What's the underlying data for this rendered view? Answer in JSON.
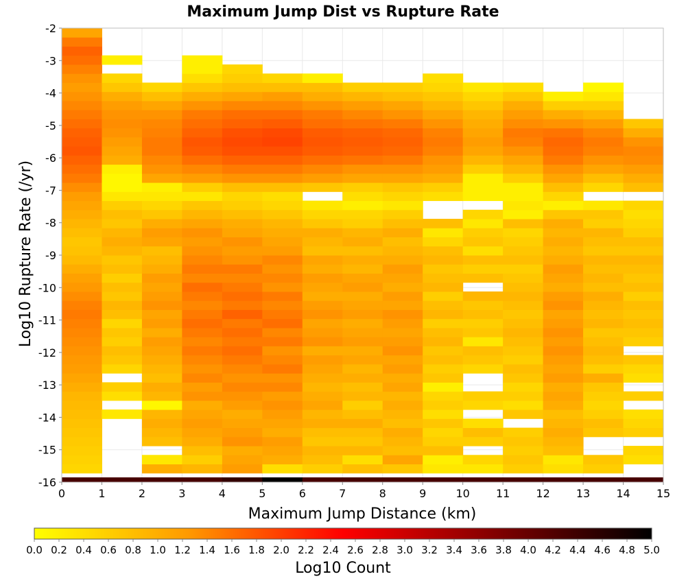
{
  "chart_data": {
    "type": "heatmap",
    "title": "Maximum Jump Dist vs Rupture Rate",
    "xlabel": "Maximum Jump Distance (km)",
    "ylabel": "Log10 Rupture Rate (/yr)",
    "xlim": [
      0,
      15
    ],
    "ylim": [
      -16,
      -2
    ],
    "x_ticks": [
      "0",
      "1",
      "2",
      "3",
      "4",
      "5",
      "6",
      "7",
      "8",
      "9",
      "10",
      "11",
      "12",
      "13",
      "14",
      "15"
    ],
    "y_ticks": [
      "-2",
      "-3",
      "-4",
      "-5",
      "-6",
      "-7",
      "-8",
      "-9",
      "-10",
      "-11",
      "-12",
      "-13",
      "-14",
      "-15",
      "-16"
    ],
    "x_bin_width": 1,
    "y_bin_width": 0.28,
    "y_bin_start": -16,
    "colorbar": {
      "label": "Log10 Count",
      "range": [
        0,
        5
      ],
      "ticks": [
        "0.0",
        "0.2",
        "0.4",
        "0.6",
        "0.8",
        "1.0",
        "1.2",
        "1.4",
        "1.6",
        "1.8",
        "2.0",
        "2.2",
        "2.4",
        "2.6",
        "2.8",
        "3.0",
        "3.2",
        "3.4",
        "3.6",
        "3.8",
        "4.0",
        "4.2",
        "4.4",
        "4.6",
        "4.8",
        "5.0"
      ],
      "colors": [
        "#ffff00",
        "#ff9900",
        "#ff0000",
        "#800000",
        "#000000"
      ]
    },
    "columns": [
      {
        "x": "0-1",
        "log10_count_from_y_-16": [
          4.3,
          0.5,
          0.55,
          0.6,
          0.65,
          0.7,
          0.75,
          0.8,
          0.85,
          0.9,
          1.0,
          1.1,
          1.2,
          1.25,
          1.3,
          1.35,
          1.4,
          1.45,
          1.5,
          1.45,
          1.35,
          1.25,
          1.15,
          1.0,
          0.85,
          0.75,
          0.7,
          0.8,
          0.9,
          1.0,
          1.1,
          1.2,
          1.35,
          1.5,
          1.6,
          1.7,
          1.8,
          1.75,
          1.7,
          1.6,
          1.5,
          1.4,
          1.3,
          1.2,
          1.3,
          1.45,
          1.6,
          1.7,
          1.5,
          1.1,
          0.5
        ]
      },
      {
        "x": "1-2",
        "log10_count_from_y_-16": [
          4.3,
          null,
          null,
          null,
          null,
          null,
          null,
          0.3,
          null,
          0.4,
          0.6,
          null,
          0.5,
          0.7,
          0.8,
          0.6,
          0.7,
          0.5,
          0.8,
          0.9,
          0.7,
          0.8,
          0.6,
          0.8,
          0.7,
          0.9,
          1.0,
          0.9,
          0.7,
          0.8,
          0.6,
          0.3,
          0.1,
          0.1,
          0.2,
          1.0,
          1.1,
          1.2,
          1.3,
          1.35,
          1.3,
          1.2,
          1.0,
          0.7,
          0.5,
          null,
          0.2,
          null,
          null,
          null,
          null
        ]
      },
      {
        "x": "2-3",
        "log10_count_from_y_-16": [
          4.3,
          1.0,
          0.3,
          null,
          0.8,
          0.9,
          1.0,
          0.9,
          0.1,
          0.9,
          1.0,
          0.8,
          0.9,
          1.0,
          1.1,
          1.2,
          1.0,
          1.2,
          1.1,
          1.3,
          1.2,
          1.1,
          1.2,
          1.0,
          0.9,
          0.8,
          1.1,
          1.2,
          1.0,
          0.7,
          0.5,
          0.3,
          0.2,
          1.1,
          1.3,
          1.4,
          1.5,
          1.5,
          1.45,
          1.4,
          1.3,
          1.1,
          0.8,
          0.5,
          null,
          null,
          null,
          null,
          null,
          null,
          null
        ]
      },
      {
        "x": "3-4",
        "log10_count_from_y_-16": [
          4.3,
          0.9,
          0.6,
          0.8,
          1.0,
          1.1,
          1.2,
          1.1,
          1.0,
          1.3,
          1.2,
          1.4,
          1.3,
          1.4,
          1.5,
          1.4,
          1.5,
          1.6,
          1.5,
          1.4,
          1.5,
          1.6,
          1.4,
          1.5,
          1.4,
          1.3,
          1.2,
          1.3,
          1.1,
          0.9,
          0.7,
          0.3,
          0.6,
          1.2,
          1.4,
          1.6,
          1.75,
          1.8,
          1.7,
          1.6,
          1.5,
          1.3,
          1.0,
          0.7,
          0.4,
          0.2,
          0.2,
          null,
          null,
          null,
          null
        ]
      },
      {
        "x": "4-5",
        "log10_count_from_y_-16": [
          4.5,
          1.2,
          1.1,
          1.0,
          1.3,
          1.2,
          1.1,
          1.0,
          1.2,
          1.3,
          1.4,
          1.3,
          1.4,
          1.5,
          1.6,
          1.5,
          1.6,
          1.5,
          1.7,
          1.5,
          1.6,
          1.5,
          1.4,
          1.5,
          1.3,
          1.2,
          1.3,
          1.1,
          1.0,
          0.8,
          0.6,
          0.5,
          0.8,
          1.3,
          1.5,
          1.7,
          1.85,
          1.9,
          1.85,
          1.7,
          1.6,
          1.4,
          1.1,
          0.8,
          0.6,
          0.5,
          null,
          null,
          null,
          null,
          null
        ]
      },
      {
        "x": "5-6",
        "log10_count_from_y_-16": [
          5.0,
          0.4,
          1.0,
          1.1,
          1.2,
          1.0,
          1.1,
          1.2,
          1.3,
          1.2,
          1.4,
          1.3,
          1.5,
          1.4,
          1.3,
          1.5,
          1.4,
          1.6,
          1.5,
          1.4,
          1.5,
          1.3,
          1.4,
          1.3,
          1.4,
          1.2,
          1.1,
          1.0,
          0.9,
          0.7,
          0.5,
          0.4,
          0.8,
          1.3,
          1.5,
          1.7,
          1.85,
          1.95,
          1.9,
          1.75,
          1.6,
          1.4,
          1.2,
          0.8,
          0.5,
          null,
          null,
          null,
          null,
          null,
          null
        ]
      },
      {
        "x": "6-7",
        "log10_count_from_y_-16": [
          4.3,
          0.6,
          0.8,
          0.9,
          0.7,
          0.8,
          1.0,
          0.9,
          1.1,
          1.0,
          0.9,
          1.0,
          1.1,
          1.2,
          1.0,
          1.3,
          1.2,
          1.1,
          1.3,
          1.2,
          1.0,
          1.1,
          1.2,
          1.0,
          1.1,
          0.8,
          0.9,
          1.0,
          0.7,
          0.5,
          0.3,
          null,
          0.7,
          1.2,
          1.4,
          1.6,
          1.75,
          1.8,
          1.75,
          1.6,
          1.5,
          1.3,
          1.0,
          0.8,
          0.2,
          null,
          null,
          null,
          null,
          null,
          null
        ]
      },
      {
        "x": "7-8",
        "log10_count_from_y_-16": [
          4.3,
          0.8,
          0.4,
          0.9,
          0.7,
          0.8,
          1.0,
          0.8,
          0.6,
          0.9,
          0.8,
          1.0,
          0.9,
          1.1,
          1.0,
          1.2,
          1.1,
          1.0,
          1.2,
          1.1,
          1.0,
          1.2,
          1.1,
          0.9,
          1.0,
          0.8,
          1.0,
          0.9,
          0.6,
          0.5,
          0.2,
          0.4,
          0.6,
          1.1,
          1.3,
          1.55,
          1.7,
          1.75,
          1.7,
          1.55,
          1.4,
          1.2,
          0.9,
          0.6,
          null,
          null,
          null,
          null,
          null,
          null,
          null
        ]
      },
      {
        "x": "8-9",
        "log10_count_from_y_-16": [
          4.3,
          0.7,
          1.1,
          0.8,
          0.9,
          1.0,
          0.8,
          0.9,
          1.0,
          0.9,
          1.1,
          1.0,
          1.2,
          1.1,
          1.3,
          1.2,
          1.1,
          1.2,
          1.3,
          1.1,
          1.2,
          1.0,
          1.1,
          1.2,
          1.0,
          0.9,
          0.8,
          1.0,
          0.8,
          0.6,
          0.3,
          0.5,
          0.7,
          1.1,
          1.3,
          1.5,
          1.65,
          1.7,
          1.65,
          1.5,
          1.3,
          1.1,
          0.8,
          0.6,
          null,
          null,
          null,
          null,
          null,
          null,
          null
        ]
      },
      {
        "x": "9-10",
        "log10_count_from_y_-16": [
          4.3,
          0.3,
          0.2,
          0.8,
          0.6,
          0.5,
          0.7,
          0.4,
          0.6,
          0.5,
          0.2,
          0.7,
          0.6,
          0.8,
          0.7,
          0.9,
          0.8,
          0.6,
          0.9,
          0.8,
          0.6,
          0.9,
          0.8,
          0.7,
          0.9,
          0.8,
          0.5,
          0.3,
          0.8,
          null,
          null,
          0.4,
          0.6,
          1.0,
          1.2,
          1.3,
          1.45,
          1.5,
          1.45,
          1.3,
          1.1,
          0.9,
          0.7,
          0.5,
          0.4,
          null,
          null,
          null,
          null,
          null,
          null
        ]
      },
      {
        "x": "10-11",
        "log10_count_from_y_-16": [
          4.3,
          0.3,
          0.5,
          null,
          0.6,
          0.8,
          0.4,
          null,
          0.5,
          0.6,
          null,
          null,
          0.5,
          0.7,
          0.8,
          0.3,
          0.7,
          0.6,
          0.8,
          0.7,
          0.9,
          null,
          0.8,
          0.6,
          0.8,
          0.4,
          0.7,
          0.6,
          0.3,
          0.5,
          null,
          0.2,
          0.2,
          0.2,
          0.6,
          0.9,
          1.1,
          1.2,
          1.1,
          1.0,
          0.9,
          0.7,
          0.5,
          0.3,
          null,
          null,
          null,
          null,
          null,
          null,
          null
        ]
      },
      {
        "x": "11-12",
        "log10_count_from_y_-16": [
          4.3,
          0.6,
          0.7,
          0.6,
          0.7,
          0.6,
          null,
          0.7,
          0.4,
          0.6,
          0.5,
          0.7,
          0.8,
          0.6,
          0.7,
          0.8,
          0.9,
          0.8,
          0.7,
          0.8,
          0.9,
          0.8,
          0.7,
          0.6,
          0.8,
          0.7,
          0.6,
          0.5,
          0.8,
          0.2,
          0.3,
          0.2,
          0.2,
          0.6,
          0.9,
          1.1,
          1.3,
          1.45,
          1.5,
          1.35,
          1.2,
          1.0,
          0.7,
          0.4,
          null,
          null,
          null,
          null,
          null,
          null,
          null
        ]
      },
      {
        "x": "12-13",
        "log10_count_from_y_-16": [
          4.3,
          0.4,
          0.3,
          0.8,
          0.9,
          1.0,
          0.9,
          0.8,
          1.0,
          1.1,
          1.0,
          1.2,
          1.1,
          1.2,
          1.3,
          1.2,
          1.3,
          1.2,
          1.1,
          1.3,
          1.2,
          1.0,
          1.1,
          1.2,
          1.0,
          0.9,
          1.0,
          0.9,
          1.0,
          0.7,
          0.2,
          0.5,
          0.8,
          1.1,
          1.3,
          1.5,
          1.6,
          1.65,
          1.55,
          1.3,
          1.0,
          0.6,
          0.2,
          null,
          null,
          null,
          null,
          null,
          null,
          null,
          null
        ]
      },
      {
        "x": "13-14",
        "log10_count_from_y_-16": [
          4.3,
          0.6,
          0.7,
          null,
          null,
          0.7,
          0.8,
          0.6,
          0.5,
          0.6,
          0.7,
          1.0,
          0.6,
          0.8,
          0.9,
          0.8,
          0.7,
          0.9,
          0.8,
          0.9,
          1.0,
          0.8,
          0.9,
          0.8,
          0.9,
          0.7,
          0.8,
          0.9,
          0.6,
          0.7,
          0.3,
          null,
          0.5,
          0.8,
          1.1,
          1.3,
          1.45,
          1.5,
          1.4,
          1.2,
          0.9,
          0.6,
          0.3,
          0.1,
          null,
          null,
          null,
          null,
          null,
          null,
          null
        ]
      },
      {
        "x": "14-15",
        "log10_count_from_y_-16": [
          4.3,
          null,
          0.4,
          0.5,
          null,
          0.6,
          0.5,
          0.4,
          null,
          0.6,
          null,
          0.4,
          0.5,
          0.7,
          null,
          0.6,
          0.7,
          0.8,
          0.7,
          0.8,
          0.6,
          0.8,
          0.7,
          0.8,
          0.9,
          0.7,
          0.8,
          0.6,
          0.5,
          0.4,
          0.5,
          null,
          0.8,
          1.0,
          1.2,
          1.35,
          1.4,
          1.3,
          1.0,
          0.7,
          null,
          null,
          null,
          null,
          null,
          null,
          null,
          null,
          null,
          null,
          null
        ]
      }
    ]
  }
}
